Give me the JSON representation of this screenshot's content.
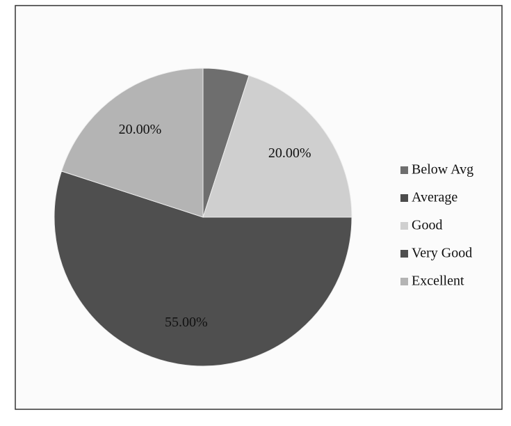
{
  "chart_data": {
    "type": "pie",
    "categories": [
      "Below Avg",
      "Average",
      "Good",
      "Very Good",
      "Excellent"
    ],
    "values": [
      5,
      0,
      20,
      55,
      20
    ],
    "value_labels": [
      null,
      null,
      "20.00%",
      "55.00%",
      "20.00%"
    ],
    "colors": [
      "#6e6e6e",
      "#4c4c4c",
      "#cfcfcf",
      "#4f4f4f",
      "#b4b4b4"
    ],
    "legend": "right"
  }
}
